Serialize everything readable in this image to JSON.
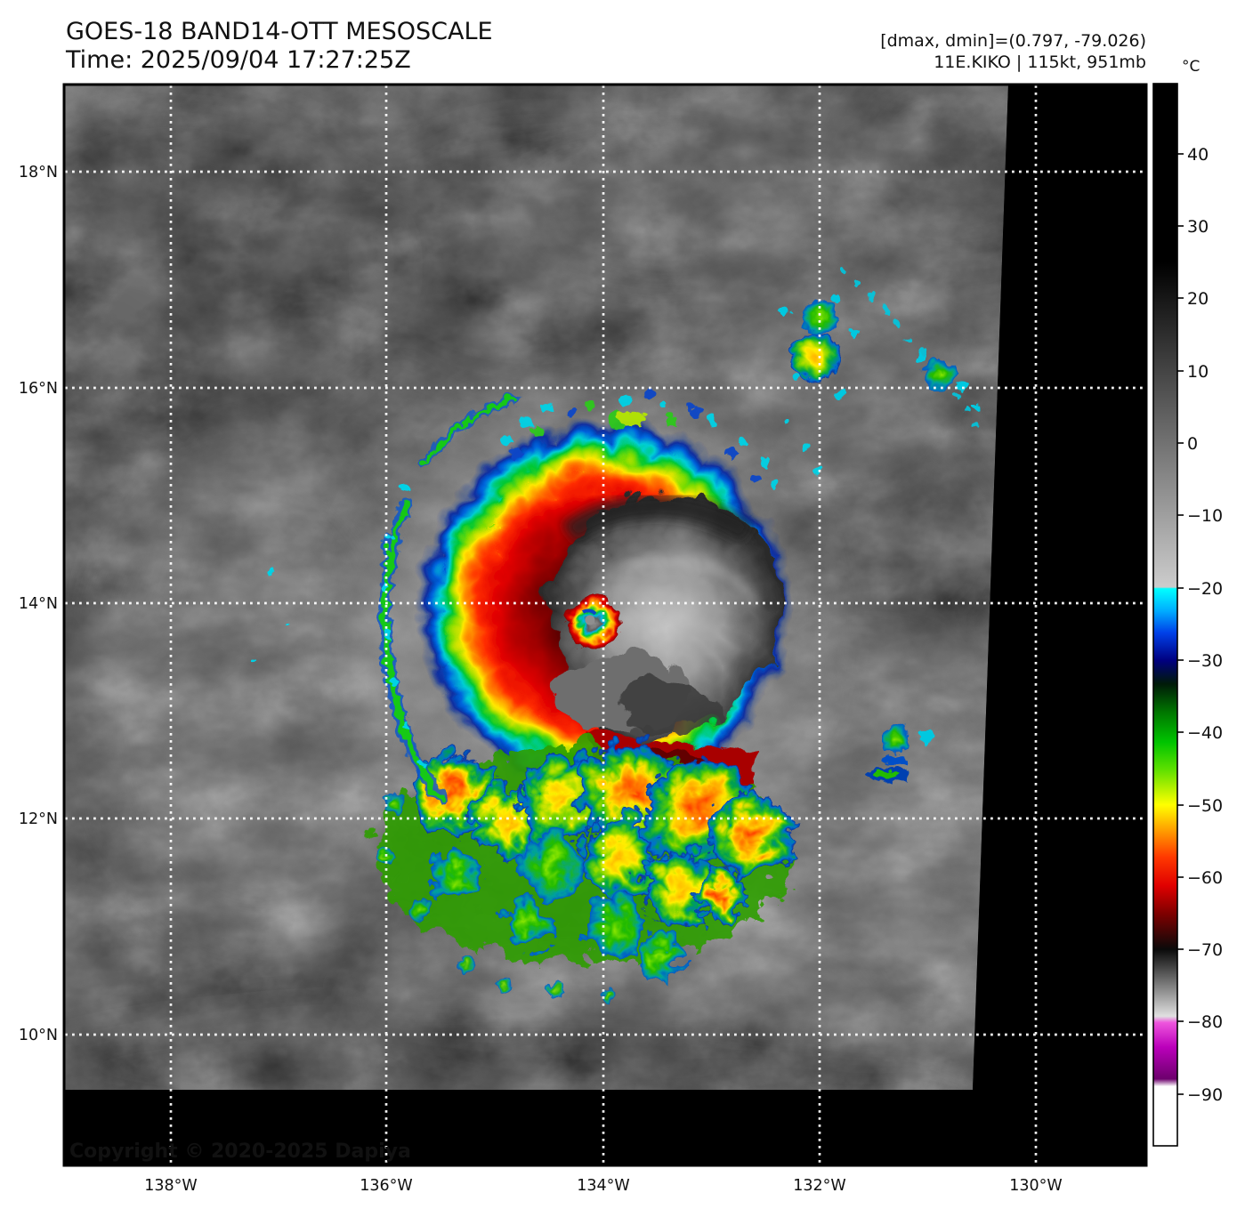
{
  "header": {
    "title": "GOES-18 BAND14-OTT MESOSCALE",
    "time": "Time: 2025/09/04 17:27:25Z",
    "dmax_dmin": "[dmax, dmin]=(0.797, -79.026)",
    "storm": "11E.KIKO | 115kt, 951mb"
  },
  "axes": {
    "lat": [
      "18°N",
      "16°N",
      "14°N",
      "12°N",
      "10°N"
    ],
    "lon": [
      "138°W",
      "136°W",
      "134°W",
      "132°W",
      "130°W"
    ]
  },
  "colorbar": {
    "unit": "°C",
    "ticks": [
      "40",
      "30",
      "20",
      "10",
      "0",
      "−10",
      "−20",
      "−30",
      "−40",
      "−50",
      "−60",
      "−70",
      "−80",
      "−90"
    ],
    "gradient": [
      {
        "o": 0.0,
        "c": "#000000"
      },
      {
        "o": 0.168,
        "c": "#000000"
      },
      {
        "o": 0.474,
        "c": "#cccccc"
      },
      {
        "o": 0.4755,
        "c": "#00ffff"
      },
      {
        "o": 0.497,
        "c": "#00aaff"
      },
      {
        "o": 0.517,
        "c": "#0040e8"
      },
      {
        "o": 0.543,
        "c": "#000080"
      },
      {
        "o": 0.565,
        "c": "#001a08"
      },
      {
        "o": 0.592,
        "c": "#007700"
      },
      {
        "o": 0.62,
        "c": "#00c400"
      },
      {
        "o": 0.646,
        "c": "#5fe000"
      },
      {
        "o": 0.679,
        "c": "#ffff00"
      },
      {
        "o": 0.7,
        "c": "#ffaa00"
      },
      {
        "o": 0.728,
        "c": "#ff3900"
      },
      {
        "o": 0.755,
        "c": "#e00000"
      },
      {
        "o": 0.782,
        "c": "#7c0000"
      },
      {
        "o": 0.815,
        "c": "#0a0a0a"
      },
      {
        "o": 0.878,
        "c": "#e0e0e0"
      },
      {
        "o": 0.884,
        "c": "#ee55dd"
      },
      {
        "o": 0.907,
        "c": "#bb00bb"
      },
      {
        "o": 0.937,
        "c": "#6d006d"
      },
      {
        "o": 0.944,
        "c": "#ffffff"
      },
      {
        "o": 1.0,
        "c": "#ffffff"
      }
    ]
  },
  "footer": {
    "copyright": "Copyright © 2020-2025 Dapiya"
  },
  "colors": {
    "grid": "#ffffff",
    "frame": "#000000",
    "no_data": "#000000",
    "page_background": "#ffffff"
  }
}
